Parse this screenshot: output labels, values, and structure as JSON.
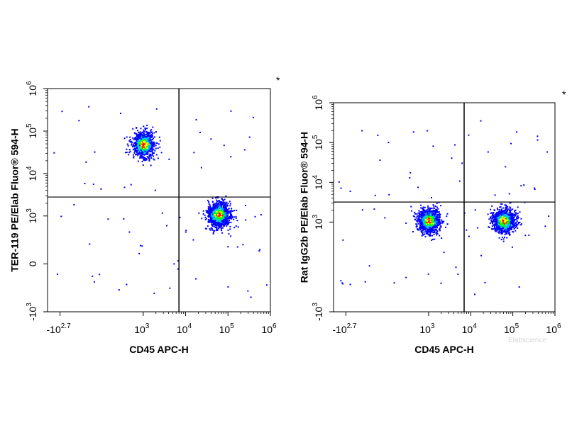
{
  "chart_data": [
    {
      "type": "scatter",
      "style": "pseudocolor density dot plot",
      "xlabel": "CD45 APC-H",
      "ylabel": "TER-119 PE/Elab Fluor® 594-H",
      "x_scale": "biexponential",
      "y_scale": "biexponential",
      "xlim": [
        -1000,
        1000000
      ],
      "ylim": [
        -1000,
        1000000
      ],
      "x_ticks": [
        {
          "base": "-10",
          "exp": "2.7",
          "value": -500
        },
        {
          "base": "10",
          "exp": "3",
          "value": 1000
        },
        {
          "base": "10",
          "exp": "4",
          "value": 10000
        },
        {
          "base": "10",
          "exp": "5",
          "value": 100000
        },
        {
          "base": "10",
          "exp": "6",
          "value": 1000000
        }
      ],
      "y_ticks": [
        {
          "base": "-10",
          "exp": "3",
          "value": -1000
        },
        {
          "base": "0",
          "exp": "",
          "value": 0
        },
        {
          "base": "10",
          "exp": "3",
          "value": 1000
        },
        {
          "base": "10",
          "exp": "4",
          "value": 10000
        },
        {
          "base": "10",
          "exp": "5",
          "value": 100000
        },
        {
          "base": "10",
          "exp": "6",
          "value": 1000000
        }
      ],
      "quadrant_gates": {
        "x": 7000,
        "y": 2800
      },
      "corner_mark": "*",
      "populations": [
        {
          "name_hint": "upper-left cluster",
          "x_center": 1000,
          "y_center": 50000,
          "events": 900
        },
        {
          "name_hint": "lower-right cluster",
          "x_center": 60000,
          "y_center": 1100,
          "events": 1200
        }
      ]
    },
    {
      "type": "scatter",
      "style": "pseudocolor density dot plot",
      "xlabel": "CD45 APC-H",
      "ylabel": "Rat IgG2b PE/Elab Fluor® 594-H",
      "x_scale": "biexponential",
      "y_scale": "biexponential",
      "xlim": [
        -1000,
        1000000
      ],
      "ylim": [
        -1000,
        1000000
      ],
      "x_ticks": [
        {
          "base": "-10",
          "exp": "2.7",
          "value": -500
        },
        {
          "base": "10",
          "exp": "3",
          "value": 1000
        },
        {
          "base": "10",
          "exp": "4",
          "value": 10000
        },
        {
          "base": "10",
          "exp": "5",
          "value": 100000
        },
        {
          "base": "10",
          "exp": "6",
          "value": 1000000
        }
      ],
      "y_ticks": [
        {
          "base": "-10",
          "exp": "3",
          "value": -1000
        },
        {
          "base": "10",
          "exp": "3",
          "value": 1000
        },
        {
          "base": "10",
          "exp": "4",
          "value": 10000
        },
        {
          "base": "10",
          "exp": "5",
          "value": 100000
        },
        {
          "base": "10",
          "exp": "6",
          "value": 1000000
        }
      ],
      "quadrant_gates": {
        "x": 7000,
        "y": 3200
      },
      "corner_mark": "*",
      "populations": [
        {
          "name_hint": "lower-left cluster",
          "x_center": 1000,
          "y_center": 1100,
          "events": 1100
        },
        {
          "name_hint": "lower-right cluster",
          "x_center": 60000,
          "y_center": 1100,
          "events": 1100
        }
      ]
    }
  ],
  "watermark": "Elabscience",
  "colors": {
    "density_low": "#0000ff",
    "density_mid_low": "#00c8ff",
    "density_mid": "#00ff00",
    "density_mid_high": "#ffff00",
    "density_high": "#ff0000",
    "axes": "#000000"
  }
}
